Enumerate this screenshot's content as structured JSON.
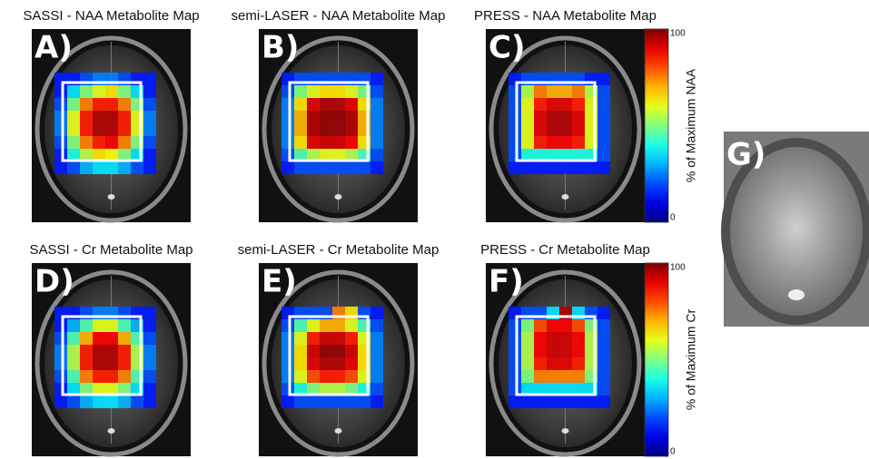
{
  "figure": {
    "panels": [
      {
        "label": "A)",
        "title": "SASSI - NAA Metabolite Map",
        "values": [
          [
            15,
            15,
            20,
            25,
            25,
            20,
            15,
            15
          ],
          [
            15,
            35,
            50,
            60,
            65,
            50,
            35,
            15
          ],
          [
            20,
            50,
            75,
            85,
            85,
            75,
            50,
            20
          ],
          [
            25,
            60,
            85,
            95,
            95,
            85,
            60,
            25
          ],
          [
            25,
            60,
            85,
            95,
            95,
            85,
            60,
            25
          ],
          [
            20,
            50,
            75,
            85,
            88,
            75,
            50,
            20
          ],
          [
            15,
            40,
            55,
            65,
            62,
            50,
            35,
            15
          ],
          [
            15,
            20,
            30,
            35,
            35,
            30,
            20,
            15
          ]
        ]
      },
      {
        "label": "B)",
        "title": "semi-LASER - NAA Metabolite Map",
        "values": [
          [
            15,
            20,
            20,
            20,
            20,
            20,
            20,
            15
          ],
          [
            20,
            50,
            60,
            65,
            65,
            60,
            50,
            20
          ],
          [
            25,
            65,
            90,
            95,
            95,
            90,
            65,
            25
          ],
          [
            25,
            70,
            95,
            98,
            98,
            95,
            70,
            25
          ],
          [
            25,
            70,
            95,
            98,
            98,
            95,
            70,
            25
          ],
          [
            25,
            65,
            90,
            92,
            92,
            88,
            65,
            25
          ],
          [
            20,
            45,
            55,
            60,
            60,
            55,
            45,
            20
          ],
          [
            15,
            20,
            20,
            20,
            20,
            20,
            20,
            15
          ]
        ]
      },
      {
        "label": "C)",
        "title": "PRESS - NAA Metabolite Map",
        "values": [
          [
            15,
            20,
            20,
            20,
            20,
            20,
            15,
            15
          ],
          [
            20,
            55,
            75,
            70,
            70,
            75,
            55,
            20
          ],
          [
            20,
            60,
            85,
            90,
            90,
            85,
            60,
            20
          ],
          [
            20,
            60,
            90,
            95,
            95,
            90,
            60,
            20
          ],
          [
            20,
            60,
            90,
            95,
            95,
            90,
            60,
            20
          ],
          [
            20,
            60,
            85,
            88,
            88,
            85,
            60,
            20
          ],
          [
            20,
            40,
            40,
            40,
            40,
            40,
            40,
            20
          ],
          [
            15,
            15,
            15,
            15,
            15,
            15,
            15,
            15
          ]
        ]
      },
      {
        "label": "D)",
        "title": "SASSI - Cr Metabolite Map",
        "values": [
          [
            15,
            15,
            20,
            25,
            25,
            20,
            15,
            15
          ],
          [
            15,
            30,
            45,
            60,
            60,
            45,
            30,
            15
          ],
          [
            20,
            45,
            70,
            88,
            88,
            70,
            45,
            20
          ],
          [
            25,
            55,
            85,
            95,
            95,
            85,
            55,
            25
          ],
          [
            25,
            55,
            85,
            95,
            95,
            85,
            55,
            25
          ],
          [
            20,
            45,
            75,
            85,
            85,
            75,
            45,
            20
          ],
          [
            15,
            35,
            50,
            60,
            60,
            50,
            35,
            15
          ],
          [
            15,
            20,
            30,
            35,
            35,
            30,
            20,
            15
          ]
        ]
      },
      {
        "label": "E)",
        "title": "semi-LASER - Cr Metabolite Map",
        "values": [
          [
            15,
            20,
            20,
            20,
            75,
            65,
            20,
            15
          ],
          [
            20,
            45,
            60,
            70,
            70,
            60,
            45,
            20
          ],
          [
            25,
            60,
            85,
            92,
            92,
            85,
            60,
            25
          ],
          [
            25,
            65,
            92,
            98,
            98,
            92,
            65,
            25
          ],
          [
            25,
            65,
            90,
            95,
            95,
            90,
            65,
            25
          ],
          [
            25,
            60,
            80,
            85,
            85,
            80,
            60,
            25
          ],
          [
            20,
            40,
            50,
            55,
            55,
            50,
            40,
            20
          ],
          [
            15,
            20,
            20,
            20,
            20,
            20,
            20,
            15
          ]
        ]
      },
      {
        "label": "F)",
        "title": "PRESS - Cr Metabolite Map",
        "values": [
          [
            15,
            20,
            20,
            35,
            95,
            35,
            20,
            15
          ],
          [
            20,
            50,
            80,
            88,
            88,
            80,
            50,
            20
          ],
          [
            20,
            55,
            88,
            92,
            92,
            88,
            55,
            20
          ],
          [
            20,
            55,
            88,
            92,
            92,
            88,
            55,
            20
          ],
          [
            20,
            55,
            85,
            90,
            90,
            85,
            55,
            20
          ],
          [
            20,
            50,
            75,
            75,
            75,
            75,
            50,
            20
          ],
          [
            20,
            35,
            35,
            35,
            35,
            35,
            35,
            20
          ],
          [
            15,
            15,
            15,
            15,
            15,
            15,
            15,
            15
          ]
        ]
      }
    ],
    "colorbars": [
      {
        "label": "% of Maximum NAA",
        "clim": [
          0,
          100
        ],
        "ticks": [
          0,
          100
        ]
      },
      {
        "label": "% of Maximum Cr",
        "clim": [
          0,
          100
        ],
        "ticks": [
          0,
          100
        ]
      }
    ],
    "inset": {
      "label": "G)"
    }
  }
}
